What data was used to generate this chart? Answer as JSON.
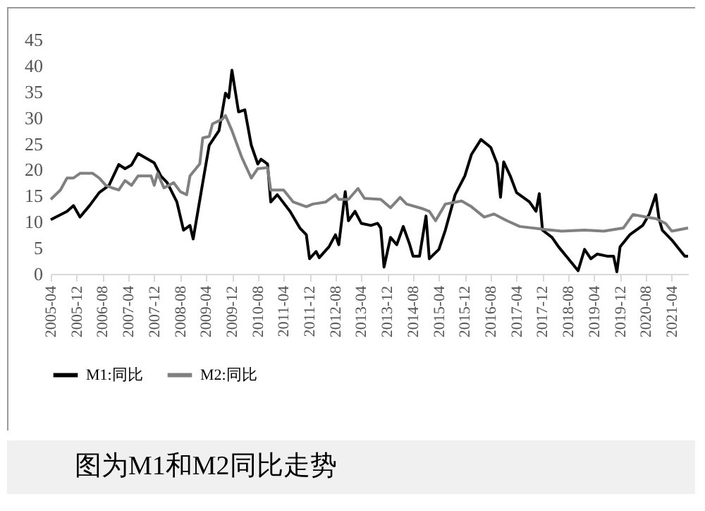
{
  "chart_data": {
    "type": "line",
    "xlim": [
      "2005-04",
      "2021-09"
    ],
    "xticks": [
      "2005-04",
      "2005-12",
      "2006-08",
      "2007-04",
      "2007-12",
      "2008-08",
      "2009-04",
      "2009-12",
      "2010-08",
      "2011-04",
      "2011-12",
      "2012-08",
      "2013-04",
      "2013-12",
      "2014-08",
      "2015-04",
      "2015-12",
      "2016-08",
      "2017-04",
      "2017-12",
      "2018-08",
      "2019-04",
      "2019-12",
      "2020-08",
      "2021-04"
    ],
    "ylim": [
      0,
      45
    ],
    "yticks": [
      0,
      5,
      10,
      15,
      20,
      25,
      30,
      35,
      40,
      45
    ],
    "grid": false,
    "legend": "bottom",
    "line_style": "solid",
    "annotations": [
      "图为M1和M2同比走势"
    ],
    "series": [
      {
        "name": "M1:同比",
        "color": "#000000",
        "x": [
          "2005-04",
          "2005-09",
          "2005-11",
          "2006-01",
          "2006-04",
          "2006-07",
          "2006-10",
          "2007-01",
          "2007-03",
          "2007-05",
          "2007-07",
          "2007-12",
          "2008-02",
          "2008-04",
          "2008-07",
          "2008-09",
          "2008-11",
          "2008-12",
          "2009-03",
          "2009-05",
          "2009-08",
          "2009-10",
          "2009-11",
          "2009-12",
          "2010-02",
          "2010-04",
          "2010-06",
          "2010-08",
          "2010-09",
          "2010-11",
          "2010-12",
          "2011-02",
          "2011-06",
          "2011-09",
          "2011-11",
          "2011-12",
          "2012-02",
          "2012-03",
          "2012-06",
          "2012-08",
          "2012-09",
          "2012-11",
          "2012-12",
          "2013-02",
          "2013-04",
          "2013-07",
          "2013-09",
          "2013-10",
          "2013-11",
          "2014-01",
          "2014-03",
          "2014-05",
          "2014-07",
          "2014-08",
          "2014-10",
          "2014-12",
          "2015-01",
          "2015-04",
          "2015-06",
          "2015-09",
          "2015-12",
          "2016-02",
          "2016-05",
          "2016-08",
          "2016-10",
          "2016-11",
          "2016-12",
          "2017-02",
          "2017-04",
          "2017-08",
          "2017-10",
          "2017-11",
          "2017-12",
          "2018-03",
          "2018-05",
          "2018-08",
          "2018-11",
          "2019-01",
          "2019-03",
          "2019-05",
          "2019-08",
          "2019-10",
          "2019-11",
          "2019-12",
          "2020-03",
          "2020-07",
          "2020-09",
          "2020-11",
          "2020-12",
          "2021-01",
          "2021-04",
          "2021-08",
          "2021-09"
        ],
        "values": [
          10.4,
          12,
          13.1,
          10.9,
          13.1,
          15.6,
          17,
          21,
          20.2,
          20.9,
          23.1,
          21.3,
          18.8,
          17.5,
          13.8,
          8.4,
          9.3,
          6.7,
          17.5,
          24.7,
          27.5,
          34.7,
          33.8,
          39.1,
          31.1,
          31.5,
          24.7,
          21.1,
          22,
          21.1,
          13.8,
          15.2,
          12,
          8.8,
          7.5,
          2.9,
          4.3,
          3.1,
          5.2,
          7.5,
          5.6,
          15.8,
          10.2,
          12,
          9.7,
          9.3,
          9.7,
          8.8,
          1.3,
          7,
          5.6,
          9.1,
          5.6,
          3.4,
          3.4,
          11.1,
          2.9,
          4.7,
          8.4,
          15.2,
          18.8,
          22.9,
          25.8,
          24.3,
          21.1,
          14.7,
          21.5,
          18.8,
          15.6,
          13.8,
          12,
          15.4,
          8.4,
          7,
          5.2,
          2.9,
          0.6,
          4.7,
          2.9,
          3.8,
          3.4,
          3.4,
          0.4,
          5.2,
          7.5,
          9.3,
          11.5,
          15.2,
          10.6,
          8.4,
          6.5,
          3.4,
          3.4
        ]
      },
      {
        "name": "M2:同比",
        "color": "#808080",
        "x": [
          "2005-04",
          "2005-07",
          "2005-09",
          "2005-11",
          "2006-01",
          "2006-05",
          "2006-07",
          "2006-09",
          "2006-11",
          "2007-01",
          "2007-03",
          "2007-05",
          "2007-07",
          "2007-11",
          "2007-12",
          "2008-01",
          "2008-03",
          "2008-06",
          "2008-08",
          "2008-10",
          "2008-11",
          "2009-02",
          "2009-03",
          "2009-05",
          "2009-06",
          "2009-09",
          "2009-10",
          "2009-12",
          "2010-03",
          "2010-04",
          "2010-06",
          "2010-08",
          "2010-11",
          "2010-12",
          "2011-04",
          "2011-07",
          "2011-11",
          "2012-01",
          "2012-05",
          "2012-08",
          "2012-09",
          "2012-12",
          "2013-03",
          "2013-05",
          "2013-10",
          "2014-01",
          "2014-04",
          "2014-06",
          "2014-11",
          "2015-01",
          "2015-03",
          "2015-06",
          "2015-11",
          "2016-02",
          "2016-06",
          "2016-09",
          "2017-01",
          "2017-05",
          "2018-01",
          "2018-06",
          "2019-01",
          "2019-07",
          "2020-01",
          "2020-04",
          "2020-08",
          "2020-11",
          "2021-02",
          "2021-04",
          "2021-09"
        ],
        "values": [
          14.3,
          16.1,
          18.4,
          18.4,
          19.3,
          19.3,
          18.4,
          17,
          16.5,
          16.1,
          17.9,
          17,
          18.8,
          18.8,
          17,
          19.3,
          16.5,
          17.5,
          15.8,
          15.2,
          18.8,
          21.1,
          26.1,
          26.4,
          28.8,
          29.7,
          30.4,
          27.5,
          22.5,
          21.1,
          18.4,
          20.2,
          20.4,
          16.1,
          16.1,
          13.8,
          12.9,
          13.4,
          13.8,
          15.2,
          14.3,
          14.3,
          16.4,
          14.5,
          14.3,
          12.7,
          14.7,
          13.4,
          12.5,
          12,
          10.2,
          13.4,
          14,
          12.9,
          10.9,
          11.5,
          10.2,
          9.1,
          8.5,
          8.2,
          8.4,
          8.2,
          8.8,
          11.4,
          10.9,
          10.6,
          9.7,
          8.2,
          8.8
        ]
      }
    ]
  }
}
